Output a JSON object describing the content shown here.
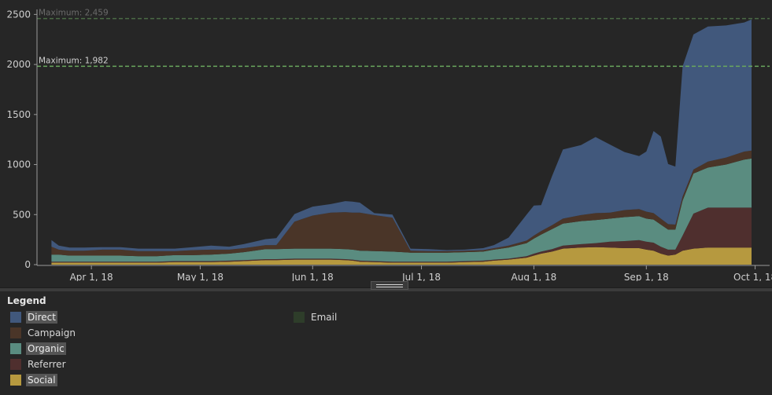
{
  "chart_data": {
    "type": "area",
    "stacked": true,
    "x_ticks": [
      "Apr 1, 18",
      "May 1, 18",
      "Jun 1, 18",
      "Jul 1, 18",
      "Aug 1, 18",
      "Sep 1, 18",
      "Oct 1, 18"
    ],
    "y_ticks": [
      "0",
      "500",
      "1000",
      "1500",
      "2000",
      "2500"
    ],
    "ylim": [
      0,
      2550
    ],
    "xlim": [
      "2018-03-17",
      "2018-10-05"
    ],
    "x": [
      "2018-03-21",
      "2018-03-23",
      "2018-03-26",
      "2018-03-30",
      "2018-04-04",
      "2018-04-09",
      "2018-04-14",
      "2018-04-19",
      "2018-04-24",
      "2018-04-29",
      "2018-05-04",
      "2018-05-09",
      "2018-05-13",
      "2018-05-16",
      "2018-05-19",
      "2018-05-22",
      "2018-05-27",
      "2018-06-01",
      "2018-06-06",
      "2018-06-10",
      "2018-06-12",
      "2018-06-14",
      "2018-06-18",
      "2018-06-23",
      "2018-06-28",
      "2018-07-03",
      "2018-07-08",
      "2018-07-13",
      "2018-07-18",
      "2018-07-21",
      "2018-07-25",
      "2018-07-30",
      "2018-08-01",
      "2018-08-03",
      "2018-08-06",
      "2018-08-09",
      "2018-08-14",
      "2018-08-18",
      "2018-08-22",
      "2018-08-26",
      "2018-08-30",
      "2018-09-01",
      "2018-09-03",
      "2018-09-05",
      "2018-09-07",
      "2018-09-09",
      "2018-09-11",
      "2018-09-14",
      "2018-09-18",
      "2018-09-23",
      "2018-09-28",
      "2018-09-30"
    ],
    "series": [
      {
        "name": "Social",
        "color": "#b6993f",
        "values": [
          20,
          20,
          20,
          20,
          20,
          20,
          20,
          20,
          25,
          25,
          25,
          30,
          35,
          40,
          45,
          45,
          50,
          50,
          50,
          45,
          40,
          30,
          25,
          20,
          20,
          20,
          20,
          25,
          30,
          40,
          50,
          70,
          90,
          110,
          130,
          160,
          170,
          175,
          170,
          165,
          165,
          150,
          140,
          110,
          90,
          100,
          140,
          160,
          170,
          170,
          170,
          170
        ]
      },
      {
        "name": "Referrer",
        "color": "#4f2f2e",
        "values": [
          10,
          10,
          10,
          10,
          10,
          10,
          10,
          10,
          10,
          10,
          10,
          10,
          10,
          10,
          10,
          10,
          10,
          10,
          10,
          10,
          10,
          10,
          10,
          10,
          10,
          10,
          10,
          10,
          10,
          10,
          10,
          15,
          20,
          20,
          25,
          30,
          35,
          40,
          60,
          70,
          80,
          80,
          80,
          70,
          60,
          50,
          150,
          350,
          400,
          400,
          400,
          400
        ]
      },
      {
        "name": "Organic",
        "color": "#5a8c80",
        "values": [
          70,
          70,
          60,
          60,
          60,
          60,
          55,
          55,
          60,
          60,
          65,
          70,
          80,
          90,
          100,
          100,
          100,
          100,
          100,
          100,
          100,
          100,
          100,
          100,
          90,
          90,
          90,
          90,
          90,
          100,
          110,
          130,
          150,
          170,
          200,
          220,
          230,
          230,
          230,
          240,
          240,
          230,
          230,
          220,
          200,
          200,
          350,
          400,
          400,
          430,
          480,
          490
        ]
      },
      {
        "name": "Campaign",
        "color": "#4a3528",
        "values": [
          80,
          50,
          50,
          50,
          60,
          60,
          50,
          50,
          40,
          50,
          50,
          40,
          40,
          40,
          40,
          40,
          270,
          330,
          360,
          370,
          370,
          380,
          360,
          340,
          20,
          15,
          15,
          15,
          15,
          15,
          20,
          25,
          30,
          35,
          40,
          50,
          60,
          70,
          60,
          70,
          70,
          70,
          65,
          60,
          55,
          50,
          40,
          40,
          60,
          70,
          80,
          80
        ]
      },
      {
        "name": "Direct",
        "color": "#41587c",
        "values": [
          65,
          40,
          30,
          30,
          25,
          25,
          25,
          25,
          25,
          30,
          40,
          30,
          40,
          50,
          60,
          70,
          75,
          90,
          85,
          110,
          110,
          100,
          20,
          30,
          20,
          20,
          10,
          10,
          20,
          30,
          80,
          260,
          300,
          260,
          490,
          690,
          700,
          760,
          680,
          580,
          530,
          600,
          820,
          820,
          600,
          580,
          1300,
          1350,
          1350,
          1320,
          1290,
          1310
        ]
      },
      {
        "name": "Email",
        "color": "#2e3d2a",
        "values": [
          0,
          0,
          0,
          0,
          0,
          0,
          0,
          0,
          0,
          0,
          0,
          0,
          0,
          0,
          0,
          0,
          0,
          0,
          0,
          0,
          0,
          0,
          0,
          0,
          0,
          0,
          0,
          0,
          0,
          0,
          0,
          0,
          0,
          0,
          0,
          0,
          0,
          0,
          0,
          0,
          0,
          0,
          0,
          0,
          0,
          0,
          0,
          0,
          0,
          0,
          0,
          0
        ]
      }
    ],
    "reference_lines": [
      {
        "label": "Maximum: 2,459",
        "value": 2459,
        "color": "#4b6b45",
        "text_color": "#6a6a6a"
      },
      {
        "label": "Maximum: 1,982",
        "value": 1982,
        "color": "#6aa85e",
        "text_color": "#d0d0d0"
      }
    ],
    "legend_position": "bottom-left"
  },
  "legend": {
    "title": "Legend",
    "items": [
      {
        "label": "Direct",
        "color": "#41587c",
        "highlighted": true
      },
      {
        "label": "Campaign",
        "color": "#4a3528",
        "highlighted": false
      },
      {
        "label": "Organic",
        "color": "#5a8c80",
        "highlighted": true
      },
      {
        "label": "Referrer",
        "color": "#4f2f2e",
        "highlighted": false
      },
      {
        "label": "Social",
        "color": "#b6993f",
        "highlighted": true
      },
      {
        "label": "Email",
        "color": "#2e3d2a",
        "highlighted": false
      }
    ]
  }
}
